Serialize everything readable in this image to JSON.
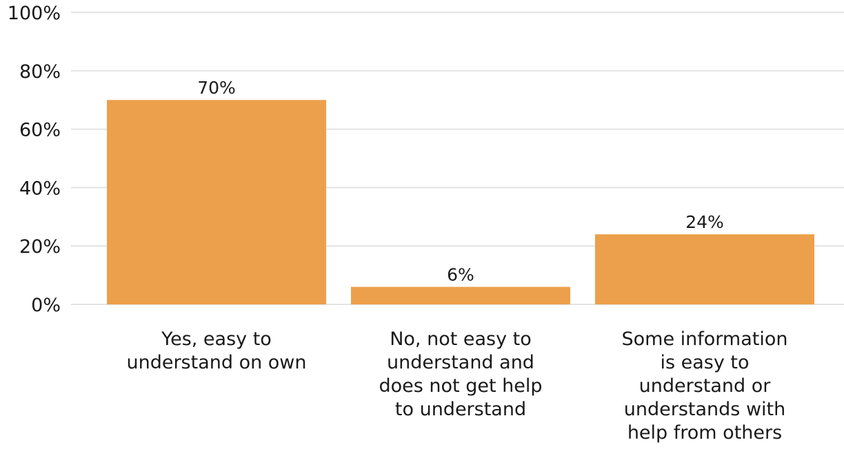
{
  "chart_data": {
    "type": "bar",
    "categories": [
      [
        "Yes, easy to",
        "understand on own"
      ],
      [
        "No, not easy to",
        "understand and",
        "does not get help",
        "to understand"
      ],
      [
        "Some information",
        "is easy to",
        "understand or",
        "understands with",
        "help from others"
      ]
    ],
    "values": [
      70,
      6,
      24
    ],
    "value_labels": [
      "70%",
      "6%",
      "24%"
    ],
    "yticks": [
      0,
      20,
      40,
      60,
      80,
      100
    ],
    "ytick_labels": [
      "0%",
      "20%",
      "40%",
      "60%",
      "80%",
      "100%"
    ],
    "ylim": [
      0,
      100
    ],
    "grid": true,
    "bar_color": "#eca04c",
    "title": "",
    "xlabel": "",
    "ylabel": ""
  }
}
